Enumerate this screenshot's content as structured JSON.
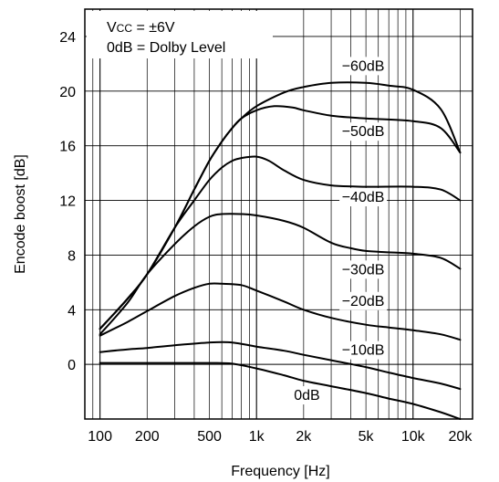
{
  "chart_data": {
    "type": "line",
    "title": "",
    "xlabel": "Frequency [Hz]",
    "ylabel": "Encode boost [dB]",
    "x_scale": "log",
    "xlim": [
      80,
      24000
    ],
    "ylim": [
      -4,
      26
    ],
    "grid": true,
    "x_ticks": [
      {
        "value": 100,
        "label": "100"
      },
      {
        "value": 200,
        "label": "200"
      },
      {
        "value": 500,
        "label": "500"
      },
      {
        "value": 1000,
        "label": "1k"
      },
      {
        "value": 2000,
        "label": "2k"
      },
      {
        "value": 5000,
        "label": "5k"
      },
      {
        "value": 10000,
        "label": "10k"
      },
      {
        "value": 20000,
        "label": "20k"
      }
    ],
    "y_ticks": [
      {
        "value": 0,
        "label": "0"
      },
      {
        "value": 4,
        "label": "4"
      },
      {
        "value": 8,
        "label": "8"
      },
      {
        "value": 12,
        "label": "12"
      },
      {
        "value": 16,
        "label": "16"
      },
      {
        "value": 20,
        "label": "20"
      },
      {
        "value": 24,
        "label": "24"
      }
    ],
    "annotation": {
      "line1_main": "V",
      "line1_sub": "CC",
      "line1_rest": " = ±6V",
      "line2": "0dB = Dolby Level"
    },
    "series": [
      {
        "name": "−60dB",
        "label_at": {
          "x": 4800,
          "y": 21.5
        },
        "points": [
          [
            100,
            2.6
          ],
          [
            150,
            4.8
          ],
          [
            200,
            6.6
          ],
          [
            300,
            10.0
          ],
          [
            400,
            12.8
          ],
          [
            500,
            14.9
          ],
          [
            600,
            16.3
          ],
          [
            700,
            17.3
          ],
          [
            800,
            18.0
          ],
          [
            1000,
            18.9
          ],
          [
            1500,
            19.9
          ],
          [
            2000,
            20.3
          ],
          [
            3000,
            20.6
          ],
          [
            5000,
            20.6
          ],
          [
            7000,
            20.4
          ],
          [
            10000,
            20.1
          ],
          [
            15000,
            18.7
          ],
          [
            20000,
            15.5
          ]
        ]
      },
      {
        "name": "−50dB",
        "label_at": {
          "x": 4800,
          "y": 16.7
        },
        "points": [
          [
            100,
            2.6
          ],
          [
            150,
            4.8
          ],
          [
            200,
            6.6
          ],
          [
            300,
            10.0
          ],
          [
            400,
            12.8
          ],
          [
            500,
            14.9
          ],
          [
            600,
            16.3
          ],
          [
            700,
            17.3
          ],
          [
            800,
            18.0
          ],
          [
            1000,
            18.6
          ],
          [
            1300,
            18.9
          ],
          [
            1700,
            18.8
          ],
          [
            2000,
            18.6
          ],
          [
            3000,
            18.2
          ],
          [
            5000,
            18.0
          ],
          [
            10000,
            17.8
          ],
          [
            15000,
            17.3
          ],
          [
            20000,
            15.5
          ]
        ]
      },
      {
        "name": "−40dB",
        "label_at": {
          "x": 4800,
          "y": 11.9
        },
        "points": [
          [
            100,
            2.6
          ],
          [
            150,
            4.8
          ],
          [
            200,
            6.6
          ],
          [
            300,
            10.0
          ],
          [
            400,
            12.0
          ],
          [
            500,
            13.5
          ],
          [
            600,
            14.4
          ],
          [
            700,
            14.9
          ],
          [
            800,
            15.1
          ],
          [
            1000,
            15.2
          ],
          [
            1200,
            14.9
          ],
          [
            1500,
            14.2
          ],
          [
            2000,
            13.5
          ],
          [
            3000,
            13.1
          ],
          [
            5000,
            13.0
          ],
          [
            10000,
            13.0
          ],
          [
            15000,
            12.8
          ],
          [
            20000,
            12.0
          ]
        ]
      },
      {
        "name": "−30dB",
        "label_at": {
          "x": 4800,
          "y": 6.6
        },
        "points": [
          [
            100,
            2.2
          ],
          [
            150,
            4.5
          ],
          [
            200,
            6.6
          ],
          [
            300,
            8.8
          ],
          [
            400,
            10.1
          ],
          [
            500,
            10.8
          ],
          [
            600,
            11.0
          ],
          [
            800,
            11.0
          ],
          [
            1000,
            10.9
          ],
          [
            1500,
            10.5
          ],
          [
            2000,
            10.0
          ],
          [
            3000,
            8.9
          ],
          [
            4000,
            8.5
          ],
          [
            5000,
            8.3
          ],
          [
            7000,
            8.2
          ],
          [
            10000,
            8.1
          ],
          [
            15000,
            7.8
          ],
          [
            20000,
            7.0
          ]
        ]
      },
      {
        "name": "−20dB",
        "label_at": {
          "x": 4800,
          "y": 4.3
        },
        "points": [
          [
            100,
            2.1
          ],
          [
            150,
            3.1
          ],
          [
            200,
            3.9
          ],
          [
            300,
            5.0
          ],
          [
            400,
            5.6
          ],
          [
            500,
            5.9
          ],
          [
            600,
            5.9
          ],
          [
            800,
            5.8
          ],
          [
            1000,
            5.4
          ],
          [
            1500,
            4.6
          ],
          [
            2000,
            4.0
          ],
          [
            3000,
            3.4
          ],
          [
            5000,
            2.9
          ],
          [
            7000,
            2.7
          ],
          [
            10000,
            2.5
          ],
          [
            15000,
            2.2
          ],
          [
            20000,
            1.8
          ]
        ]
      },
      {
        "name": "−10dB",
        "label_at": {
          "x": 4800,
          "y": 0.7
        },
        "points": [
          [
            100,
            0.9
          ],
          [
            150,
            1.1
          ],
          [
            200,
            1.2
          ],
          [
            300,
            1.4
          ],
          [
            500,
            1.6
          ],
          [
            700,
            1.6
          ],
          [
            1000,
            1.3
          ],
          [
            1500,
            1.0
          ],
          [
            2000,
            0.7
          ],
          [
            3000,
            0.3
          ],
          [
            5000,
            -0.2
          ],
          [
            7000,
            -0.6
          ],
          [
            10000,
            -1.0
          ],
          [
            15000,
            -1.4
          ],
          [
            20000,
            -1.8
          ]
        ]
      },
      {
        "name": "0dB",
        "label_at": {
          "x": 2100,
          "y": -2.6
        },
        "points": [
          [
            100,
            0.1
          ],
          [
            200,
            0.1
          ],
          [
            300,
            0.1
          ],
          [
            500,
            0.1
          ],
          [
            700,
            0.05
          ],
          [
            1000,
            -0.3
          ],
          [
            1500,
            -0.8
          ],
          [
            2000,
            -1.2
          ],
          [
            3000,
            -1.6
          ],
          [
            5000,
            -2.1
          ],
          [
            7000,
            -2.5
          ],
          [
            10000,
            -2.9
          ],
          [
            15000,
            -3.5
          ],
          [
            20000,
            -4.0
          ]
        ]
      }
    ]
  }
}
